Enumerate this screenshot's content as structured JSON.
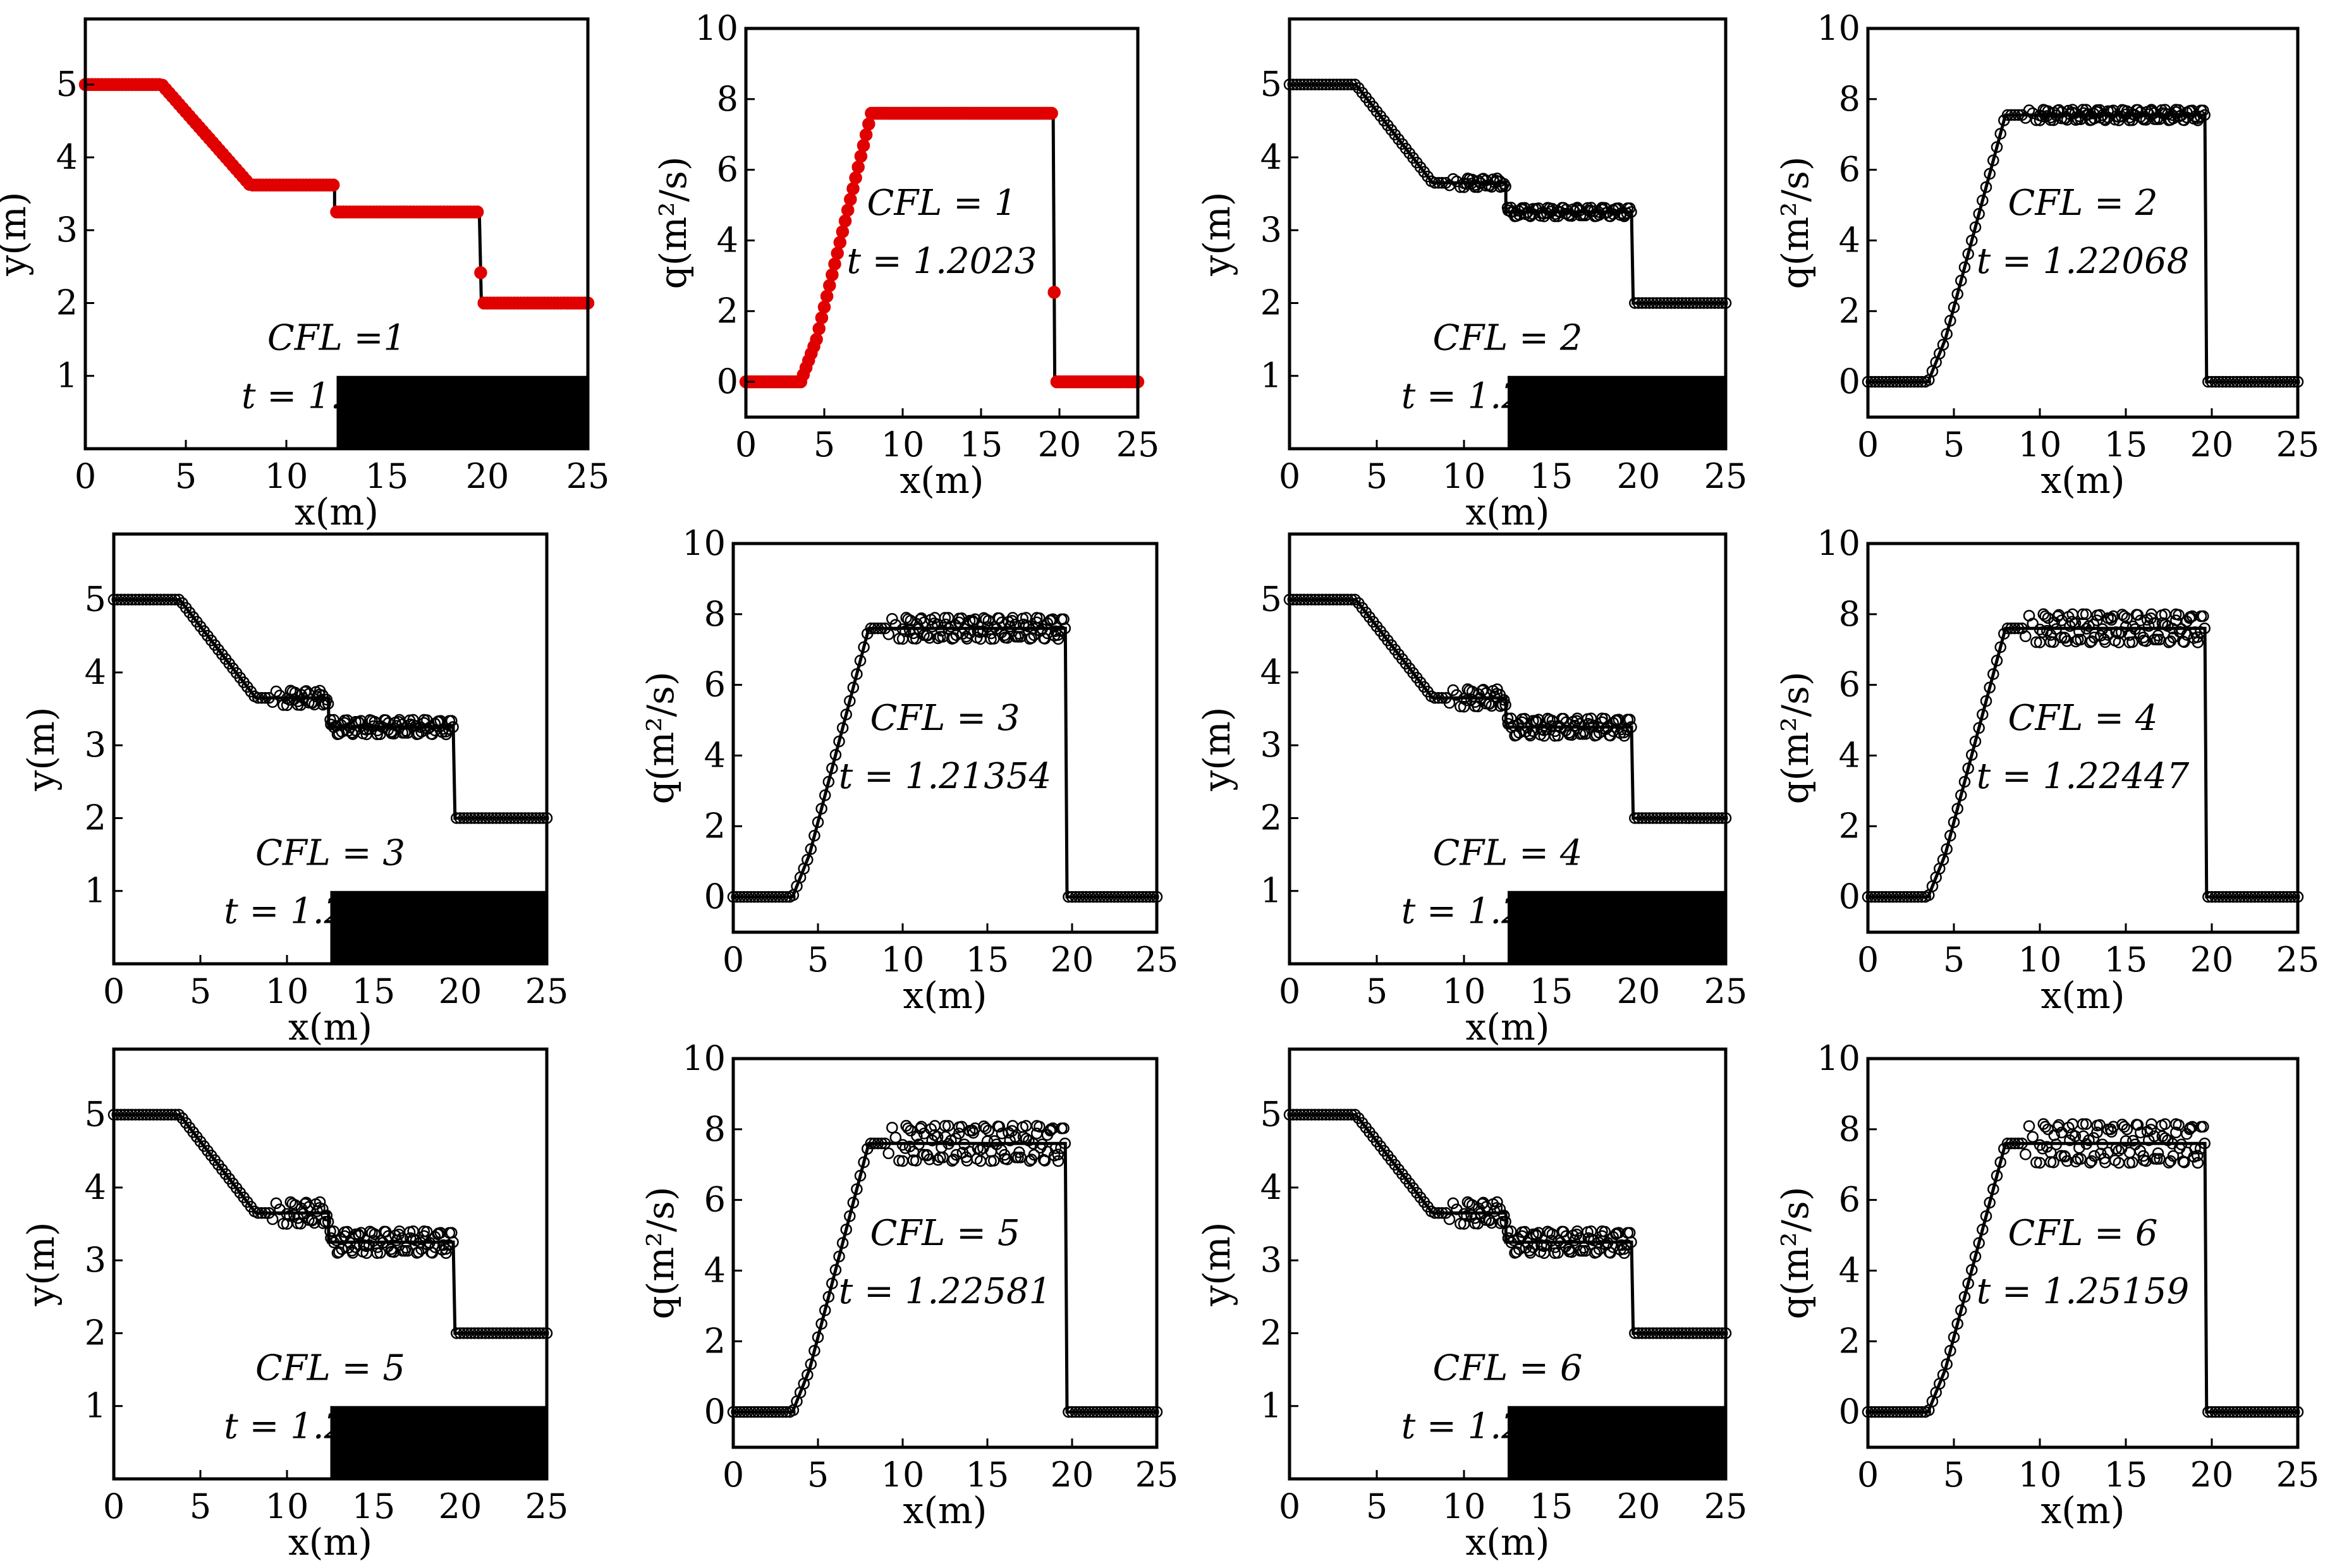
{
  "colors": {
    "ink": "#000000",
    "red": "#e00000",
    "step": "#000000"
  },
  "chart_data": [
    {
      "type": "line",
      "kind": "depth",
      "xlabel": "x(m)",
      "ylabel": "y(m)",
      "xlim": [
        0,
        25
      ],
      "ylim": [
        0,
        5.9
      ],
      "xticks": [
        "0",
        "5",
        "10",
        "15",
        "20",
        "25"
      ],
      "yticks": [
        "1",
        "2",
        "3",
        "4",
        "5"
      ],
      "cfl_text": "CFL =1",
      "time_text": "t = 1.2023",
      "red": true,
      "osc": 0,
      "obstacle": {
        "x": [
          12.5,
          25
        ],
        "y": [
          0,
          1
        ]
      },
      "series": [
        {
          "x": [
            0,
            3.8,
            8.2,
            12.4,
            12.4,
            19.6,
            19.7,
            25
          ],
          "values": [
            5.0,
            5.0,
            3.62,
            3.62,
            3.25,
            3.25,
            2.0,
            2.0
          ]
        }
      ]
    },
    {
      "type": "line",
      "kind": "discharge",
      "xlabel": "x(m)",
      "ylabel": "q(m²/s)",
      "xlim": [
        0,
        25
      ],
      "ylim": [
        -1,
        10
      ],
      "xticks": [
        "0",
        "5",
        "10",
        "15",
        "20",
        "25"
      ],
      "yticks": [
        "0",
        "2",
        "4",
        "6",
        "8",
        "10"
      ],
      "cfl_text": "CFL = 1",
      "time_text": "t = 1.2023",
      "red": true,
      "osc": 0,
      "series": [
        {
          "x": [
            0,
            3.5,
            4.5,
            8.0,
            19.6,
            19.7,
            25
          ],
          "values": [
            0,
            0,
            1.2,
            7.6,
            7.6,
            0,
            0
          ]
        }
      ]
    },
    {
      "type": "line",
      "kind": "depth",
      "xlabel": "x(m)",
      "ylabel": "y(m)",
      "xlim": [
        0,
        25
      ],
      "ylim": [
        0,
        5.9
      ],
      "xticks": [
        "0",
        "5",
        "10",
        "15",
        "20",
        "25"
      ],
      "yticks": [
        "1",
        "2",
        "3",
        "4",
        "5"
      ],
      "cfl_text": "CFL = 2",
      "time_text": "t = 1.22068",
      "red": false,
      "osc": 0.06,
      "obstacle": {
        "x": [
          12.5,
          25
        ],
        "y": [
          0,
          1
        ]
      },
      "series": [
        {
          "x": [
            0,
            3.8,
            8.2,
            12.4,
            12.4,
            19.6,
            19.7,
            25
          ],
          "values": [
            5.0,
            5.0,
            3.65,
            3.65,
            3.25,
            3.25,
            2.0,
            2.0
          ]
        }
      ]
    },
    {
      "type": "line",
      "kind": "discharge",
      "xlabel": "x(m)",
      "ylabel": "q(m²/s)",
      "xlim": [
        0,
        25
      ],
      "ylim": [
        -1,
        10
      ],
      "xticks": [
        "0",
        "5",
        "10",
        "15",
        "20",
        "25"
      ],
      "yticks": [
        "0",
        "2",
        "4",
        "6",
        "8",
        "10"
      ],
      "cfl_text": "CFL = 2",
      "time_text": "t = 1.22068",
      "red": false,
      "osc": 0.15,
      "series": [
        {
          "x": [
            0,
            3.5,
            4.5,
            8.0,
            19.6,
            19.7,
            25
          ],
          "values": [
            0,
            0,
            1.2,
            7.55,
            7.55,
            0,
            0
          ]
        }
      ]
    },
    {
      "type": "line",
      "kind": "depth",
      "xlabel": "x(m)",
      "ylabel": "y(m)",
      "xlim": [
        0,
        25
      ],
      "ylim": [
        0,
        5.9
      ],
      "xticks": [
        "0",
        "5",
        "10",
        "15",
        "20",
        "25"
      ],
      "yticks": [
        "1",
        "2",
        "3",
        "4",
        "5"
      ],
      "cfl_text": "CFL = 3",
      "time_text": "t = 1.21354",
      "red": false,
      "osc": 0.1,
      "obstacle": {
        "x": [
          12.5,
          25
        ],
        "y": [
          0,
          1
        ]
      },
      "series": [
        {
          "x": [
            0,
            3.8,
            8.2,
            12.4,
            12.4,
            19.6,
            19.7,
            25
          ],
          "values": [
            5.0,
            5.0,
            3.65,
            3.65,
            3.25,
            3.25,
            2.0,
            2.0
          ]
        }
      ]
    },
    {
      "type": "line",
      "kind": "discharge",
      "xlabel": "x(m)",
      "ylabel": "q(m²/s)",
      "xlim": [
        0,
        25
      ],
      "ylim": [
        -1,
        10
      ],
      "xticks": [
        "0",
        "5",
        "10",
        "15",
        "20",
        "25"
      ],
      "yticks": [
        "0",
        "2",
        "4",
        "6",
        "8",
        "10"
      ],
      "cfl_text": "CFL = 3",
      "time_text": "t = 1.21354",
      "red": false,
      "osc": 0.3,
      "series": [
        {
          "x": [
            0,
            3.5,
            4.5,
            8.0,
            19.6,
            19.7,
            25
          ],
          "values": [
            0,
            0,
            1.2,
            7.6,
            7.6,
            0,
            0
          ]
        }
      ]
    },
    {
      "type": "line",
      "kind": "depth",
      "xlabel": "x(m)",
      "ylabel": "y(m)",
      "xlim": [
        0,
        25
      ],
      "ylim": [
        0,
        5.9
      ],
      "xticks": [
        "0",
        "5",
        "10",
        "15",
        "20",
        "25"
      ],
      "yticks": [
        "1",
        "2",
        "3",
        "4",
        "5"
      ],
      "cfl_text": "CFL = 4",
      "time_text": "t = 1.22447",
      "red": false,
      "osc": 0.12,
      "obstacle": {
        "x": [
          12.5,
          25
        ],
        "y": [
          0,
          1
        ]
      },
      "series": [
        {
          "x": [
            0,
            3.8,
            8.2,
            12.4,
            12.4,
            19.6,
            19.7,
            25
          ],
          "values": [
            5.0,
            5.0,
            3.65,
            3.65,
            3.25,
            3.25,
            2.0,
            2.0
          ]
        }
      ]
    },
    {
      "type": "line",
      "kind": "discharge",
      "xlabel": "x(m)",
      "ylabel": "q(m²/s)",
      "xlim": [
        0,
        25
      ],
      "ylim": [
        -1,
        10
      ],
      "xticks": [
        "0",
        "5",
        "10",
        "15",
        "20",
        "25"
      ],
      "yticks": [
        "0",
        "2",
        "4",
        "6",
        "8",
        "10"
      ],
      "cfl_text": "CFL = 4",
      "time_text": "t = 1.22447",
      "red": false,
      "osc": 0.4,
      "series": [
        {
          "x": [
            0,
            3.5,
            4.5,
            8.0,
            19.6,
            19.7,
            25
          ],
          "values": [
            0,
            0,
            1.2,
            7.6,
            7.6,
            0,
            0
          ]
        }
      ]
    },
    {
      "type": "line",
      "kind": "depth",
      "xlabel": "x(m)",
      "ylabel": "y(m)",
      "xlim": [
        0,
        25
      ],
      "ylim": [
        0,
        5.9
      ],
      "xticks": [
        "0",
        "5",
        "10",
        "15",
        "20",
        "25"
      ],
      "yticks": [
        "1",
        "2",
        "3",
        "4",
        "5"
      ],
      "cfl_text": "CFL = 5",
      "time_text": "t = 1.22581",
      "red": false,
      "osc": 0.15,
      "obstacle": {
        "x": [
          12.5,
          25
        ],
        "y": [
          0,
          1
        ]
      },
      "series": [
        {
          "x": [
            0,
            3.8,
            8.2,
            12.4,
            12.4,
            19.6,
            19.7,
            25
          ],
          "values": [
            5.0,
            5.0,
            3.65,
            3.65,
            3.25,
            3.25,
            2.0,
            2.0
          ]
        }
      ]
    },
    {
      "type": "line",
      "kind": "discharge",
      "xlabel": "x(m)",
      "ylabel": "q(m²/s)",
      "xlim": [
        0,
        25
      ],
      "ylim": [
        -1,
        10
      ],
      "xticks": [
        "0",
        "5",
        "10",
        "15",
        "20",
        "25"
      ],
      "yticks": [
        "0",
        "2",
        "4",
        "6",
        "8",
        "10"
      ],
      "cfl_text": "CFL = 5",
      "time_text": "t = 1.22581",
      "red": false,
      "osc": 0.5,
      "series": [
        {
          "x": [
            0,
            3.5,
            4.5,
            8.0,
            19.6,
            19.7,
            25
          ],
          "values": [
            0,
            0,
            1.2,
            7.6,
            7.6,
            0,
            0
          ]
        }
      ]
    },
    {
      "type": "line",
      "kind": "depth",
      "xlabel": "x(m)",
      "ylabel": "y(m)",
      "xlim": [
        0,
        25
      ],
      "ylim": [
        0,
        5.9
      ],
      "xticks": [
        "0",
        "5",
        "10",
        "15",
        "20",
        "25"
      ],
      "yticks": [
        "1",
        "2",
        "3",
        "4",
        "5"
      ],
      "cfl_text": "CFL = 6",
      "time_text": "t = 1.25159",
      "red": false,
      "osc": 0.15,
      "obstacle": {
        "x": [
          12.5,
          25
        ],
        "y": [
          0,
          1
        ]
      },
      "series": [
        {
          "x": [
            0,
            3.8,
            8.2,
            12.4,
            12.4,
            19.6,
            19.7,
            25
          ],
          "values": [
            5.0,
            5.0,
            3.65,
            3.65,
            3.25,
            3.25,
            2.0,
            2.0
          ]
        }
      ]
    },
    {
      "type": "line",
      "kind": "discharge",
      "xlabel": "x(m)",
      "ylabel": "q(m²/s)",
      "xlim": [
        0,
        25
      ],
      "ylim": [
        -1,
        10
      ],
      "xticks": [
        "0",
        "5",
        "10",
        "15",
        "20",
        "25"
      ],
      "yticks": [
        "0",
        "2",
        "4",
        "6",
        "8",
        "10"
      ],
      "cfl_text": "CFL = 6",
      "time_text": "t = 1.25159",
      "red": false,
      "osc": 0.55,
      "series": [
        {
          "x": [
            0,
            3.5,
            4.5,
            8.0,
            19.6,
            19.7,
            25
          ],
          "values": [
            0,
            0,
            1.2,
            7.6,
            7.6,
            0,
            0
          ]
        }
      ]
    }
  ]
}
